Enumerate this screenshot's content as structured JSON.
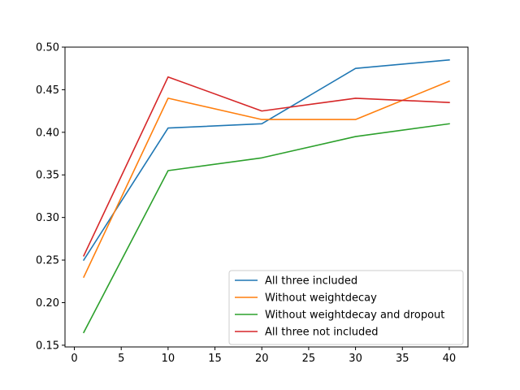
{
  "chart_data": {
    "type": "line",
    "x": [
      1,
      10,
      20,
      30,
      40
    ],
    "xlim": [
      -1,
      42
    ],
    "ylim": [
      0.148,
      0.5
    ],
    "xticks": [
      0,
      5,
      10,
      15,
      20,
      25,
      30,
      35,
      40
    ],
    "yticks": [
      0.15,
      0.2,
      0.25,
      0.3,
      0.35,
      0.4,
      0.45,
      0.5
    ],
    "xtick_labels": [
      "0",
      "5",
      "10",
      "15",
      "20",
      "25",
      "30",
      "35",
      "40"
    ],
    "ytick_labels": [
      "0.15",
      "0.20",
      "0.25",
      "0.30",
      "0.35",
      "0.40",
      "0.45",
      "0.50"
    ],
    "grid": false,
    "legend_position": "lower-right",
    "series": [
      {
        "name": "All three included",
        "color": "#1f77b4",
        "values": [
          0.25,
          0.405,
          0.41,
          0.475,
          0.485
        ]
      },
      {
        "name": "Without weightdecay",
        "color": "#ff7f0e",
        "values": [
          0.23,
          0.44,
          0.415,
          0.415,
          0.46
        ]
      },
      {
        "name": "Without weightdecay and dropout",
        "color": "#2ca02c",
        "values": [
          0.165,
          0.355,
          0.37,
          0.395,
          0.41
        ]
      },
      {
        "name": "All three not included",
        "color": "#d62728",
        "values": [
          0.255,
          0.465,
          0.425,
          0.44,
          0.435
        ]
      }
    ]
  }
}
